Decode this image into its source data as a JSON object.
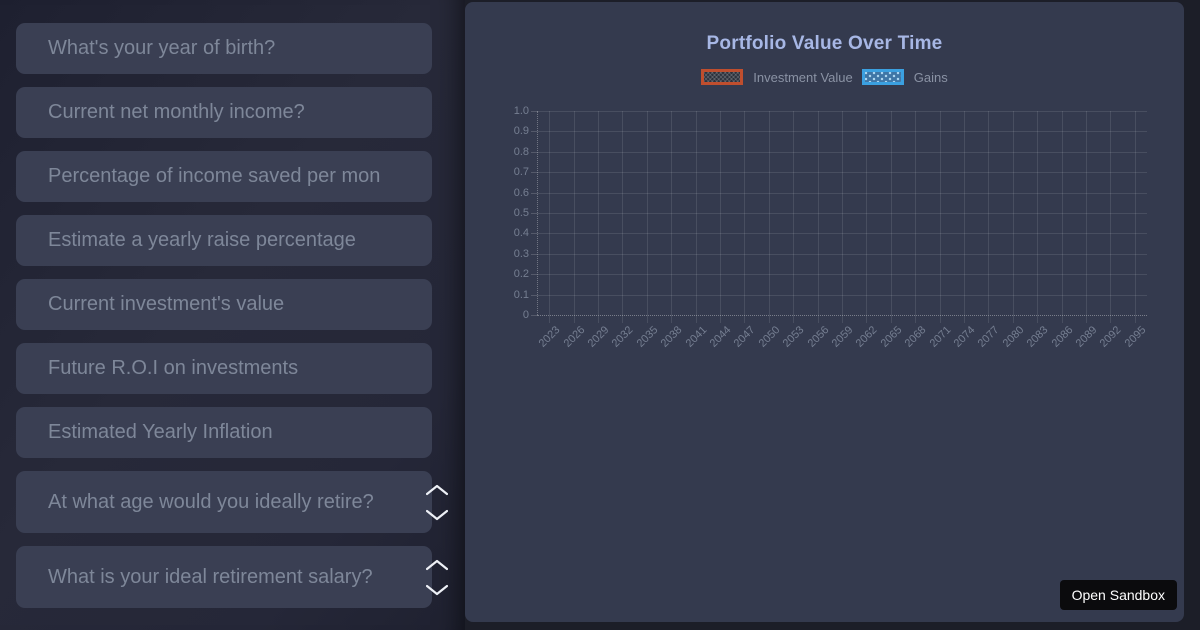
{
  "form": {
    "fields": [
      {
        "name": "year-of-birth",
        "type": "text",
        "placeholder": "What's your year of birth?"
      },
      {
        "name": "monthly-income",
        "type": "text",
        "placeholder": "Current net monthly income?"
      },
      {
        "name": "savings-percentage",
        "type": "text",
        "placeholder": "Percentage of income saved per mon"
      },
      {
        "name": "yearly-raise",
        "type": "text",
        "placeholder": "Estimate a yearly raise percentage"
      },
      {
        "name": "investment-value",
        "type": "text",
        "placeholder": "Current investment's value"
      },
      {
        "name": "future-roi",
        "type": "text",
        "placeholder": "Future R.O.I on investments"
      },
      {
        "name": "yearly-inflation",
        "type": "text",
        "placeholder": "Estimated Yearly Inflation"
      },
      {
        "name": "retirement-age",
        "type": "number",
        "placeholder": "At what age would you ideally retire?"
      },
      {
        "name": "retirement-salary",
        "type": "number",
        "placeholder": "What is your ideal retirement salary?"
      }
    ]
  },
  "chart": {
    "title": "Portfolio Value Over Time",
    "legend": [
      {
        "label": "Investment Value",
        "pattern": "zigzag",
        "border_color": "#bf4e2e",
        "fill_color": "#2c313c",
        "texture_color": "rgba(255,255,255,0.16)"
      },
      {
        "label": "Gains",
        "pattern": "dot",
        "border_color": "#3ba0e0",
        "fill_color": "#3f76a6",
        "dot_color": "#aad4ef"
      }
    ]
  },
  "chart_data": {
    "type": "bar",
    "title": "Portfolio Value Over Time",
    "categories": [
      2023,
      2026,
      2029,
      2032,
      2035,
      2038,
      2041,
      2044,
      2047,
      2050,
      2053,
      2056,
      2059,
      2062,
      2065,
      2068,
      2071,
      2074,
      2077,
      2080,
      2083,
      2086,
      2089,
      2092,
      2095
    ],
    "series": [
      {
        "name": "Investment Value",
        "values": []
      },
      {
        "name": "Gains",
        "values": []
      }
    ],
    "xlabel": "",
    "ylabel": "",
    "ylim": [
      0,
      1.0
    ],
    "y_ticks": [
      "1.0",
      "0.9",
      "0.8",
      "0.7",
      "0.6",
      "0.5",
      "0.4",
      "0.3",
      "0.2",
      "0.1",
      "0"
    ],
    "grid": true,
    "legend_position": "top"
  },
  "overlay": {
    "open_sandbox_label": "Open Sandbox"
  },
  "colors": {
    "page_bg": "#1c1e28",
    "form_bg": "#252738",
    "input_bg": "#3a3f53",
    "placeholder_text": "#7e8799",
    "card_bg": "#343a4e",
    "chart_title": "#a7b7e5",
    "tick_label": "#757e91",
    "legend_label": "#8a92a4",
    "gridline": "rgba(255,255,255,0.10)",
    "investment_accent": "#bf4e2e",
    "gains_accent": "#3ba0e0",
    "sandbox_button_bg": "#0b0b0d",
    "sandbox_button_text": "#ffffff"
  }
}
